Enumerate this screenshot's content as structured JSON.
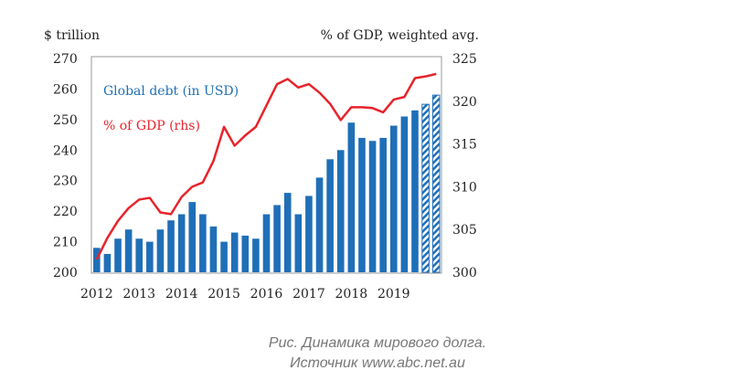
{
  "chart_data": {
    "type": "bar+line",
    "ylabel_left": "$ trillion",
    "ylabel_right": "% of GDP, weighted avg.",
    "ylim_left": [
      200,
      270
    ],
    "yticks_left": [
      200,
      210,
      220,
      230,
      240,
      250,
      260,
      270
    ],
    "ylim_right": [
      300,
      325
    ],
    "yticks_right": [
      300,
      305,
      310,
      315,
      320,
      325
    ],
    "xticks": [
      "2012",
      "2013",
      "2014",
      "2015",
      "2016",
      "2017",
      "2018",
      "2019"
    ],
    "grid": false,
    "series": [
      {
        "name": "Global debt (in USD)",
        "type": "bar",
        "axis": "left",
        "color": "#1f6fb8",
        "values": [
          208,
          206,
          211,
          214,
          211,
          210,
          214,
          217,
          219,
          223,
          219,
          215,
          210,
          213,
          212,
          211,
          219,
          222,
          226,
          219,
          225,
          231,
          237,
          240,
          249,
          244,
          243,
          244,
          248,
          251,
          253,
          255,
          258
        ],
        "estimated_last": 2
      },
      {
        "name": "% of GDP (rhs)",
        "type": "line",
        "axis": "right",
        "color": "#e8232a",
        "values": [
          301.5,
          304,
          306,
          307.5,
          308.5,
          308.7,
          307,
          306.8,
          308.8,
          310,
          310.5,
          313,
          317,
          314.8,
          316,
          317,
          319.5,
          322,
          322.6,
          321.6,
          322,
          321,
          319.7,
          317.8,
          319.3,
          319.3,
          319.2,
          318.7,
          320.2,
          320.5,
          322.7,
          322.9,
          323.2
        ]
      }
    ]
  },
  "caption": {
    "line1": "Рис. Динамика мирового долга.",
    "line2": "Источник www.abc.net.au"
  }
}
